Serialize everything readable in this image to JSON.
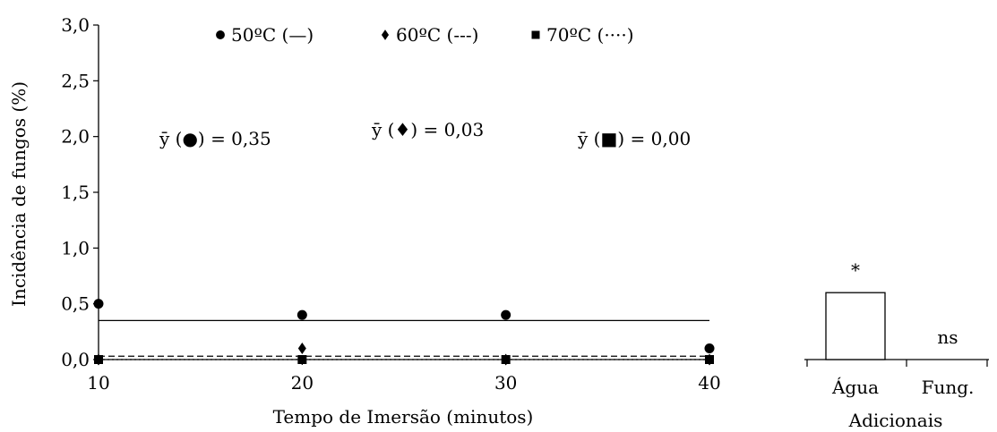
{
  "chart_data": [
    {
      "type": "scatter",
      "xlabel": "Tempo de Imersão (minutos)",
      "ylabel": "Incidência de fungos (%)",
      "xlim": [
        10,
        40
      ],
      "ylim": [
        0,
        3.0
      ],
      "xticks": [
        "10",
        "20",
        "30",
        "40"
      ],
      "yticks": [
        "0,0",
        "0,5",
        "1,0",
        "1,5",
        "2,0",
        "2,5",
        "3,0"
      ],
      "grid": false,
      "legend_position": "top",
      "series": [
        {
          "name": "50ºC (—)",
          "marker": "circle",
          "line_style": "solid",
          "x": [
            10,
            20,
            30,
            40
          ],
          "y": [
            0.5,
            0.4,
            0.4,
            0.1
          ],
          "mean_label": "ȳ (●) = 0,35",
          "mean": 0.35
        },
        {
          "name": "60ºC (---)",
          "marker": "diamond",
          "line_style": "dashed",
          "x": [
            10,
            20,
            30,
            40
          ],
          "y": [
            0.0,
            0.1,
            0.0,
            0.0
          ],
          "mean_label": "ȳ (♦) = 0,03",
          "mean": 0.03
        },
        {
          "name": "70ºC (····)",
          "marker": "square",
          "line_style": "dotted",
          "x": [
            10,
            20,
            30,
            40
          ],
          "y": [
            0.0,
            0.0,
            0.0,
            0.0
          ],
          "mean_label": "ȳ (■) = 0,00",
          "mean": 0.0
        }
      ]
    },
    {
      "type": "bar",
      "xlabel": "Adicionais",
      "categories": [
        "Água",
        "Fung."
      ],
      "values": [
        0.6,
        0.0
      ],
      "annotations": [
        "*",
        "ns"
      ],
      "ylim": [
        0,
        3.0
      ]
    }
  ]
}
